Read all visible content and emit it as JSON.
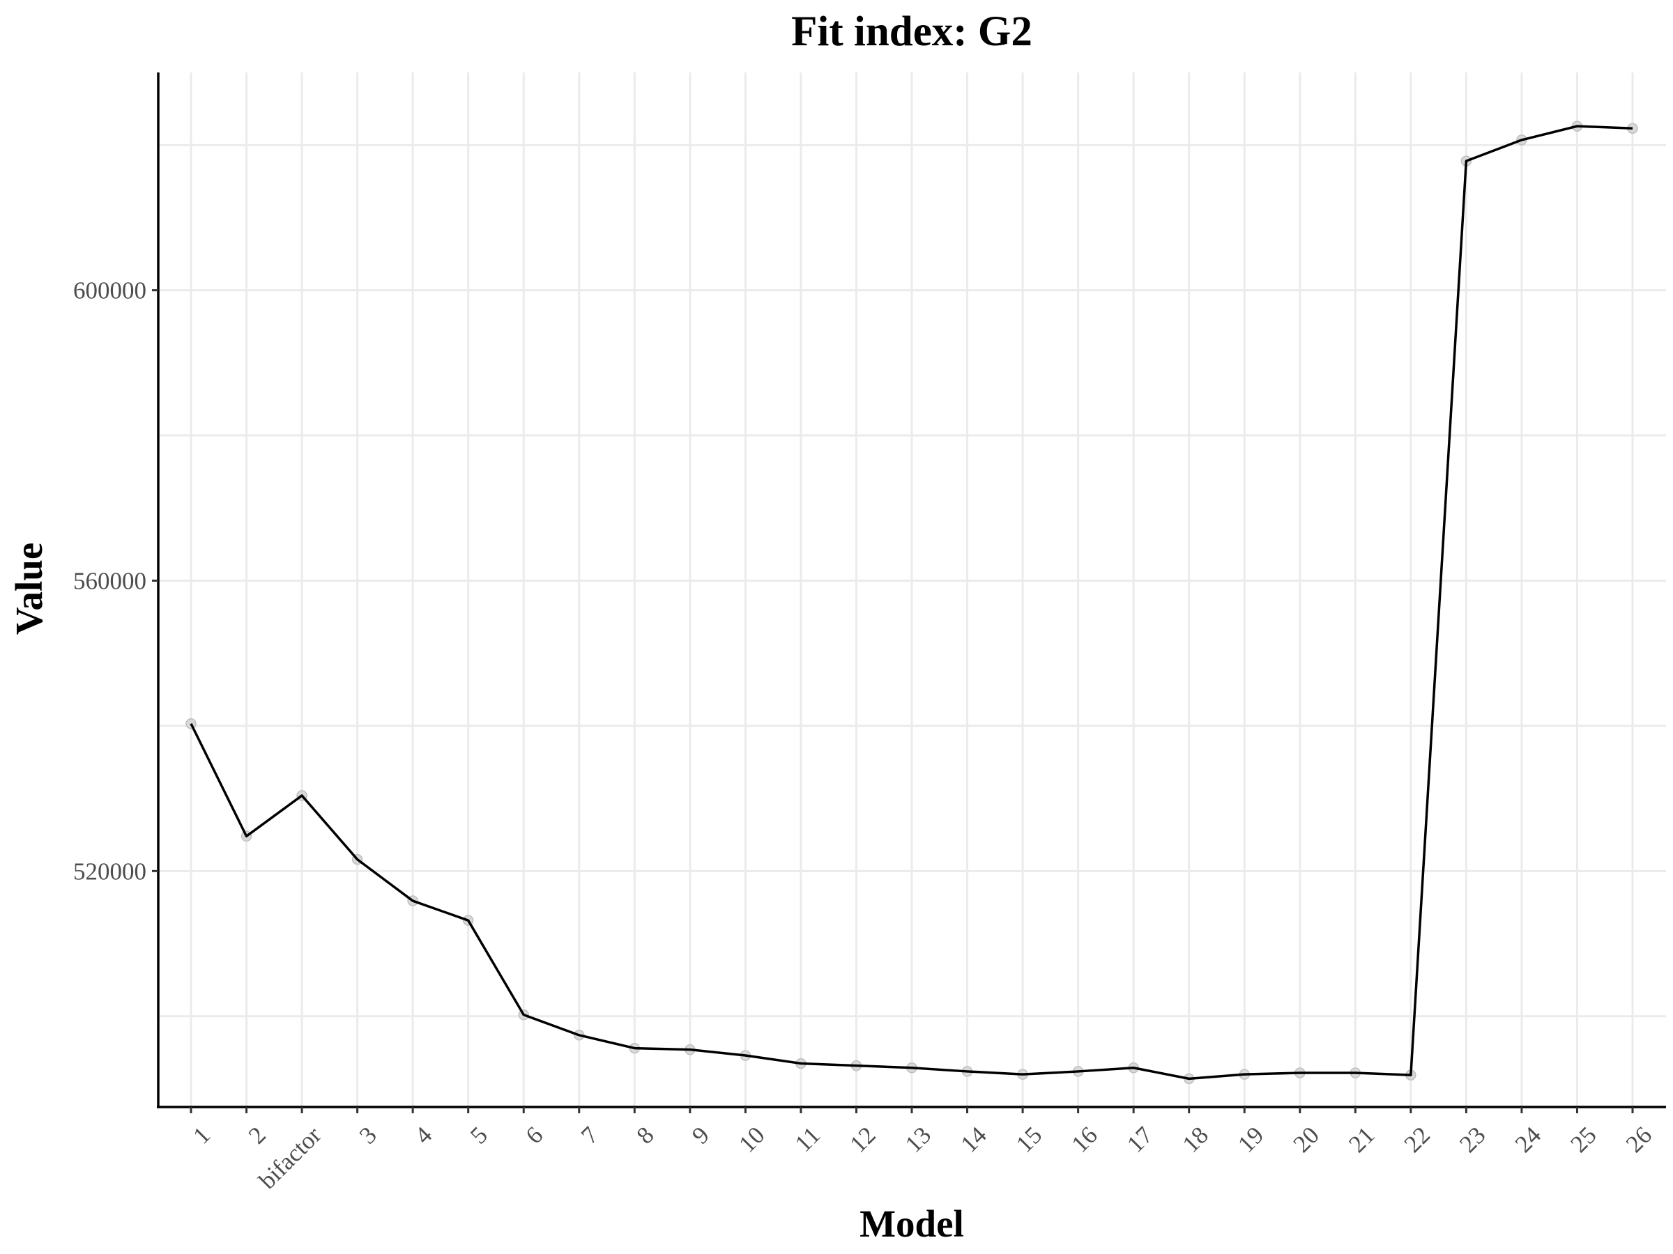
{
  "chart_data": {
    "type": "line",
    "title": "Fit index: G2",
    "xlabel": "Model",
    "ylabel": "Value",
    "categories": [
      "1",
      "2",
      "bifactor",
      "3",
      "4",
      "5",
      "6",
      "7",
      "8",
      "9",
      "10",
      "11",
      "12",
      "13",
      "14",
      "15",
      "16",
      "17",
      "18",
      "19",
      "20",
      "21",
      "22",
      "23",
      "24",
      "25",
      "26"
    ],
    "series": [
      {
        "values": [
          540300,
          524800,
          530400,
          521600,
          515900,
          513200,
          500200,
          497400,
          495600,
          495400,
          494600,
          493500,
          493200,
          492900,
          492400,
          492000,
          492400,
          492900,
          491400,
          492000,
          492200,
          492200,
          491900,
          617800,
          620700,
          622600,
          622300
        ]
      }
    ],
    "yticks": [
      {
        "value": 520000,
        "label": "520000"
      },
      {
        "value": 560000,
        "label": "560000"
      },
      {
        "value": 600000,
        "label": "600000"
      }
    ],
    "y_minor_gridlines": [
      500000,
      540000,
      580000,
      620000
    ],
    "ylim": [
      487500,
      630000
    ],
    "grid": true,
    "legend": "none",
    "colors": {
      "line": "#000000",
      "point": "#d9d9d9",
      "grid": "#ebebeb"
    }
  }
}
